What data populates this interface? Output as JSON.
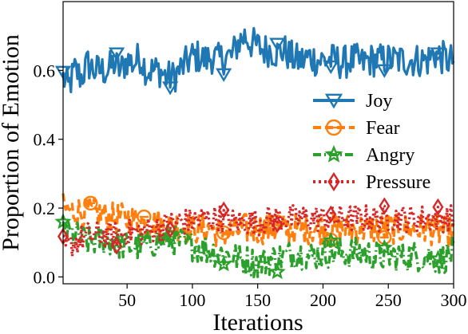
{
  "chart_data": {
    "type": "line",
    "title": "",
    "xlabel": "Iterations",
    "ylabel": "Proportion of Emotion",
    "xlim": [
      1,
      300
    ],
    "ylim": [
      -0.02,
      0.8
    ],
    "xticks": [
      50,
      100,
      150,
      200,
      250,
      300
    ],
    "yticks": [
      0.0,
      0.2,
      0.4,
      0.6
    ],
    "grid": false,
    "legend_position": "center-right",
    "series": [
      {
        "name": "Joy",
        "color": "#1f77b4",
        "dash": "solid",
        "marker": "triangle-down",
        "marker_x": [
          1,
          42,
          83,
          124,
          165,
          206,
          247,
          288
        ],
        "anchors": [
          [
            1,
            0.58
          ],
          [
            5,
            0.55
          ],
          [
            10,
            0.6
          ],
          [
            15,
            0.58
          ],
          [
            20,
            0.62
          ],
          [
            25,
            0.6
          ],
          [
            30,
            0.6
          ],
          [
            35,
            0.6
          ],
          [
            40,
            0.62
          ],
          [
            45,
            0.6
          ],
          [
            50,
            0.63
          ],
          [
            55,
            0.62
          ],
          [
            60,
            0.64
          ],
          [
            65,
            0.6
          ],
          [
            70,
            0.6
          ],
          [
            75,
            0.6
          ],
          [
            80,
            0.58
          ],
          [
            85,
            0.58
          ],
          [
            90,
            0.6
          ],
          [
            95,
            0.62
          ],
          [
            100,
            0.64
          ],
          [
            105,
            0.64
          ],
          [
            110,
            0.63
          ],
          [
            115,
            0.64
          ],
          [
            120,
            0.63
          ],
          [
            125,
            0.64
          ],
          [
            130,
            0.64
          ],
          [
            135,
            0.68
          ],
          [
            140,
            0.7
          ],
          [
            145,
            0.68
          ],
          [
            150,
            0.67
          ],
          [
            155,
            0.66
          ],
          [
            160,
            0.66
          ],
          [
            165,
            0.65
          ],
          [
            170,
            0.66
          ],
          [
            175,
            0.64
          ],
          [
            180,
            0.63
          ],
          [
            185,
            0.63
          ],
          [
            190,
            0.64
          ],
          [
            195,
            0.63
          ],
          [
            200,
            0.63
          ],
          [
            205,
            0.63
          ],
          [
            210,
            0.63
          ],
          [
            215,
            0.62
          ],
          [
            220,
            0.63
          ],
          [
            225,
            0.63
          ],
          [
            230,
            0.62
          ],
          [
            235,
            0.63
          ],
          [
            240,
            0.63
          ],
          [
            245,
            0.63
          ],
          [
            250,
            0.63
          ],
          [
            255,
            0.63
          ],
          [
            260,
            0.63
          ],
          [
            265,
            0.63
          ],
          [
            270,
            0.63
          ],
          [
            275,
            0.63
          ],
          [
            280,
            0.63
          ],
          [
            285,
            0.65
          ],
          [
            290,
            0.64
          ],
          [
            295,
            0.63
          ],
          [
            300,
            0.63
          ]
        ],
        "noise": 0.05,
        "clip": [
          0.5,
          0.75
        ]
      },
      {
        "name": "Fear",
        "color": "#ff7f0e",
        "dash": "dashed",
        "marker": "circle-minus",
        "marker_x": [
          22,
          63,
          124,
          165,
          206,
          247,
          288
        ],
        "anchors": [
          [
            1,
            0.2
          ],
          [
            10,
            0.19
          ],
          [
            20,
            0.19
          ],
          [
            30,
            0.18
          ],
          [
            40,
            0.17
          ],
          [
            50,
            0.17
          ],
          [
            60,
            0.16
          ],
          [
            70,
            0.16
          ],
          [
            80,
            0.15
          ],
          [
            90,
            0.15
          ],
          [
            100,
            0.14
          ],
          [
            110,
            0.14
          ],
          [
            120,
            0.13
          ],
          [
            130,
            0.13
          ],
          [
            140,
            0.14
          ],
          [
            150,
            0.14
          ],
          [
            160,
            0.14
          ],
          [
            170,
            0.14
          ],
          [
            180,
            0.14
          ],
          [
            190,
            0.14
          ],
          [
            200,
            0.14
          ],
          [
            210,
            0.14
          ],
          [
            220,
            0.14
          ],
          [
            230,
            0.14
          ],
          [
            240,
            0.14
          ],
          [
            250,
            0.14
          ],
          [
            260,
            0.14
          ],
          [
            270,
            0.14
          ],
          [
            280,
            0.14
          ],
          [
            290,
            0.13
          ],
          [
            300,
            0.13
          ]
        ],
        "noise": 0.045,
        "clip": [
          0.07,
          0.28
        ]
      },
      {
        "name": "Angry",
        "color": "#2ca02c",
        "dash": "dashdot",
        "marker": "star",
        "marker_x": [
          1,
          42,
          83,
          124,
          165,
          206,
          247,
          288
        ],
        "anchors": [
          [
            1,
            0.14
          ],
          [
            10,
            0.12
          ],
          [
            20,
            0.1
          ],
          [
            30,
            0.11
          ],
          [
            40,
            0.1
          ],
          [
            50,
            0.09
          ],
          [
            60,
            0.09
          ],
          [
            70,
            0.1
          ],
          [
            80,
            0.11
          ],
          [
            90,
            0.1
          ],
          [
            100,
            0.09
          ],
          [
            110,
            0.08
          ],
          [
            120,
            0.07
          ],
          [
            130,
            0.06
          ],
          [
            140,
            0.05
          ],
          [
            150,
            0.04
          ],
          [
            160,
            0.05
          ],
          [
            170,
            0.06
          ],
          [
            180,
            0.07
          ],
          [
            190,
            0.06
          ],
          [
            200,
            0.07
          ],
          [
            210,
            0.07
          ],
          [
            220,
            0.07
          ],
          [
            230,
            0.07
          ],
          [
            240,
            0.06
          ],
          [
            250,
            0.06
          ],
          [
            260,
            0.06
          ],
          [
            270,
            0.06
          ],
          [
            280,
            0.06
          ],
          [
            290,
            0.05
          ],
          [
            300,
            0.07
          ]
        ],
        "noise": 0.045,
        "clip": [
          0.0,
          0.16
        ]
      },
      {
        "name": "Pressure",
        "color": "#d62728",
        "dash": "dotted",
        "marker": "diamond",
        "marker_x": [
          1,
          42,
          83,
          124,
          165,
          206,
          247,
          288
        ],
        "anchors": [
          [
            1,
            0.08
          ],
          [
            10,
            0.1
          ],
          [
            20,
            0.12
          ],
          [
            30,
            0.12
          ],
          [
            40,
            0.12
          ],
          [
            50,
            0.13
          ],
          [
            60,
            0.13
          ],
          [
            70,
            0.14
          ],
          [
            80,
            0.15
          ],
          [
            90,
            0.16
          ],
          [
            100,
            0.16
          ],
          [
            110,
            0.17
          ],
          [
            120,
            0.17
          ],
          [
            130,
            0.16
          ],
          [
            140,
            0.16
          ],
          [
            150,
            0.16
          ],
          [
            160,
            0.17
          ],
          [
            170,
            0.17
          ],
          [
            180,
            0.17
          ],
          [
            190,
            0.17
          ],
          [
            200,
            0.17
          ],
          [
            210,
            0.17
          ],
          [
            220,
            0.17
          ],
          [
            230,
            0.17
          ],
          [
            240,
            0.17
          ],
          [
            250,
            0.17
          ],
          [
            260,
            0.17
          ],
          [
            270,
            0.17
          ],
          [
            280,
            0.17
          ],
          [
            290,
            0.17
          ],
          [
            300,
            0.17
          ]
        ],
        "noise": 0.04,
        "clip": [
          0.04,
          0.21
        ]
      }
    ]
  }
}
